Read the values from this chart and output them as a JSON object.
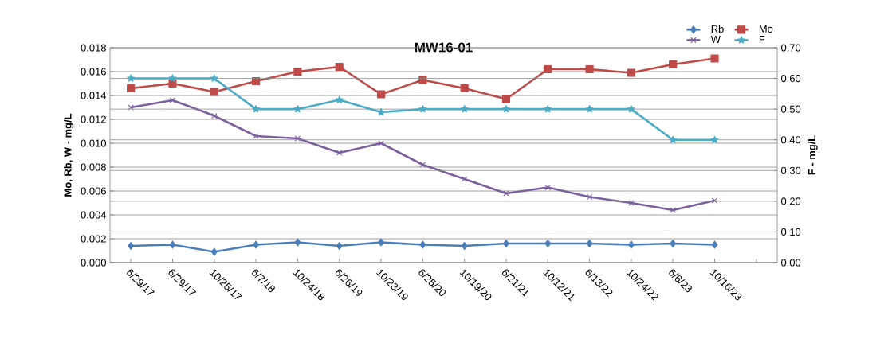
{
  "chart_data": {
    "type": "line",
    "title": "MW16-01",
    "ylabel": "Mo, Rb, W - mg/L",
    "y2label": "F - mg/L",
    "categories": [
      "6/29/17",
      "6/29/17",
      "10/25/17",
      "6/7/18",
      "10/24/18",
      "6/26/19",
      "10/23/19",
      "6/25/20",
      "10/19/20",
      "6/21/21",
      "10/12/21",
      "6/13/22",
      "10/24/22",
      "6/6/23",
      "10/16/23",
      null
    ],
    "series": [
      {
        "name": "Rb",
        "color": "#4a7ebb",
        "marker": "diamond",
        "values": [
          0.0014,
          0.0015,
          0.0009,
          0.0015,
          0.0017,
          0.0014,
          0.0017,
          0.0015,
          0.0014,
          0.0016,
          0.0016,
          0.0016,
          0.0015,
          0.0016,
          0.0015,
          null
        ]
      },
      {
        "name": "Mo",
        "color": "#be4b48",
        "marker": "square",
        "values": [
          0.0146,
          0.015,
          0.0143,
          0.0152,
          0.016,
          0.0164,
          0.0141,
          0.0153,
          0.0146,
          0.0137,
          0.0162,
          0.0162,
          0.0159,
          0.0166,
          0.0171,
          null
        ]
      },
      {
        "name": "W",
        "color": "#7d5fa0",
        "marker": "cross",
        "values": [
          0.013,
          0.0136,
          0.0123,
          0.0106,
          0.0104,
          0.0092,
          0.01,
          0.0082,
          0.007,
          0.0058,
          0.0063,
          0.0055,
          0.005,
          0.0044,
          0.0052,
          null
        ]
      },
      {
        "name": "F",
        "color": "#4bacc6",
        "marker": "star",
        "axis": "y2",
        "values": [
          0.6,
          0.6,
          0.6,
          0.5,
          0.5,
          0.53,
          0.49,
          0.5,
          0.5,
          0.5,
          0.5,
          0.5,
          0.5,
          0.4,
          0.4,
          null
        ]
      }
    ],
    "ylim": [
      0,
      0.018
    ],
    "yticks": [
      {
        "value": 0,
        "label": "0.000"
      },
      {
        "value": 0.002,
        "label": "0.002"
      },
      {
        "value": 0.004,
        "label": "0.004"
      },
      {
        "value": 0.006,
        "label": "0.006"
      },
      {
        "value": 0.008,
        "label": "0.008"
      },
      {
        "value": 0.01,
        "label": "0.010"
      },
      {
        "value": 0.012,
        "label": "0.012"
      },
      {
        "value": 0.014,
        "label": "0.014"
      },
      {
        "value": 0.016,
        "label": "0.016"
      },
      {
        "value": 0.018,
        "label": "0.018"
      }
    ],
    "y2lim": [
      0,
      0.7
    ],
    "y2ticks": [
      {
        "value": 0,
        "label": "0.00"
      },
      {
        "value": 0.1,
        "label": "0.10"
      },
      {
        "value": 0.2,
        "label": "0.20"
      },
      {
        "value": 0.3,
        "label": "0.30"
      },
      {
        "value": 0.4,
        "label": "0.40"
      },
      {
        "value": 0.5,
        "label": "0.50"
      },
      {
        "value": 0.6,
        "label": "0.60"
      },
      {
        "value": 0.7,
        "label": "0.70"
      }
    ],
    "grid": true,
    "legend": "top right"
  }
}
